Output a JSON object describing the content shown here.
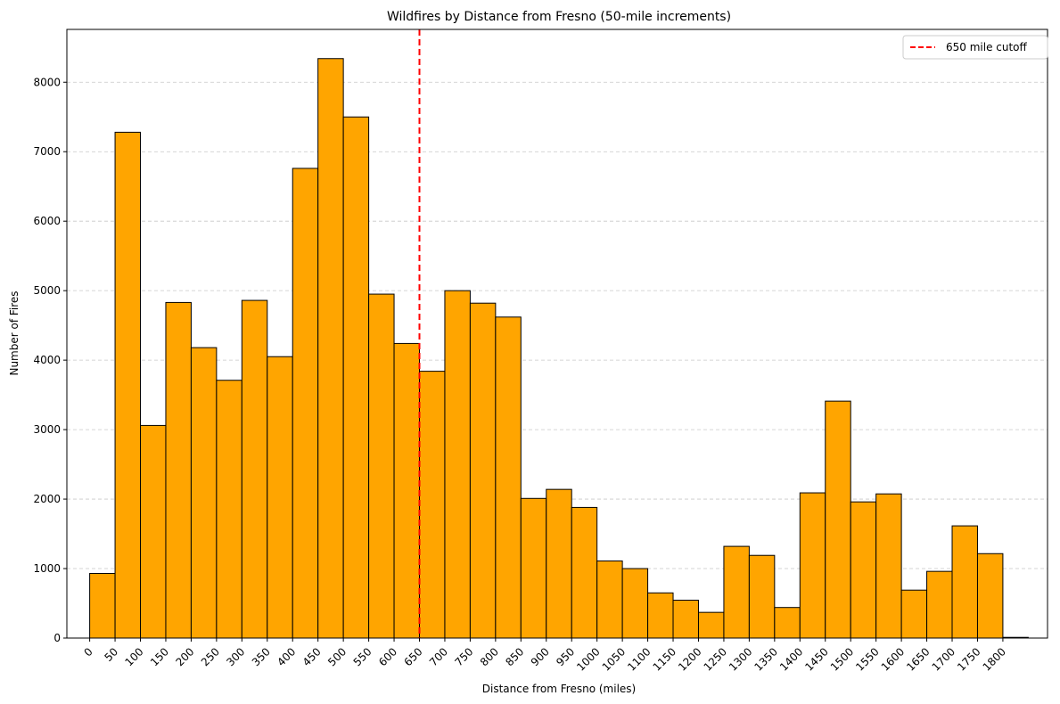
{
  "chart_data": {
    "type": "bar",
    "title": "Wildfires by Distance from Fresno (50-mile increments)",
    "xlabel": "Distance from Fresno (miles)",
    "ylabel": "Number of Fires",
    "bin_width": 50,
    "bin_starts": [
      0,
      50,
      100,
      150,
      200,
      250,
      300,
      350,
      400,
      450,
      500,
      550,
      600,
      650,
      700,
      750,
      800,
      850,
      900,
      950,
      1000,
      1050,
      1100,
      1150,
      1200,
      1250,
      1300,
      1350,
      1400,
      1450,
      1500,
      1550,
      1600,
      1650,
      1700,
      1750,
      1800
    ],
    "values": [
      930,
      7280,
      3060,
      4830,
      4180,
      3710,
      4860,
      4050,
      6760,
      8340,
      7500,
      4950,
      4240,
      3840,
      5000,
      4820,
      4620,
      2010,
      2140,
      1880,
      1110,
      1000,
      650,
      545,
      370,
      1320,
      1190,
      440,
      2090,
      3410,
      1960,
      2075,
      690,
      960,
      1615,
      1215,
      10
    ],
    "x_ticks": [
      "0",
      "50",
      "100",
      "150",
      "200",
      "250",
      "300",
      "350",
      "400",
      "450",
      "500",
      "550",
      "600",
      "650",
      "700",
      "750",
      "800",
      "850",
      "900",
      "950",
      "1000",
      "1050",
      "1100",
      "1150",
      "1200",
      "1250",
      "1300",
      "1350",
      "1400",
      "1450",
      "1500",
      "1550",
      "1600",
      "1650",
      "1700",
      "1750",
      "1800"
    ],
    "y_ticks": [
      "0",
      "1000",
      "2000",
      "3000",
      "4000",
      "5000",
      "6000",
      "7000",
      "8000"
    ],
    "xlim": [
      -45,
      1888
    ],
    "ylim": [
      0,
      8760
    ],
    "grid": "y-dashed",
    "bar_color": "#FFA500",
    "bar_edge_color": "#000000",
    "cutoff": {
      "x": 650,
      "label": "650 mile cutoff",
      "color": "#FF0000"
    },
    "legend_position": "top-right"
  }
}
